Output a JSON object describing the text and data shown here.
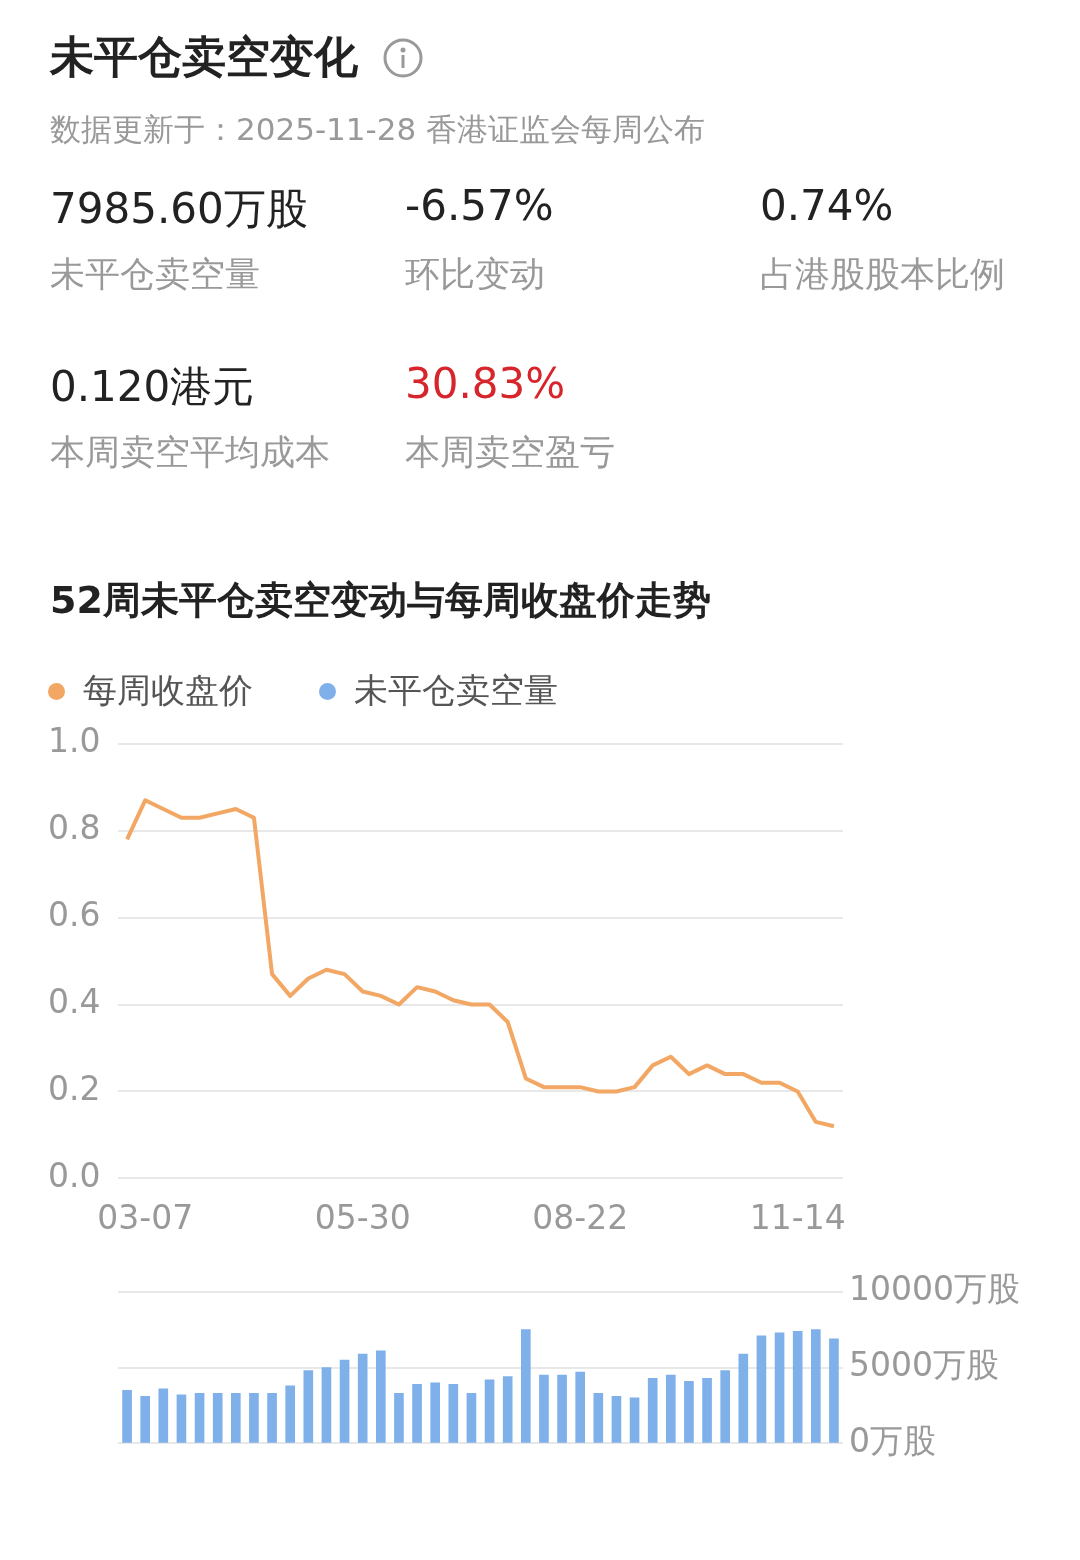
{
  "chart_data": [
    {
      "type": "other",
      "title": "未平仓卖空变化",
      "subtitle": "数据更新于：2025-11-28 香港证监会每周公布",
      "annotations": [
        "7985.60万股",
        "未平仓卖空量",
        "-6.57%",
        "环比变动",
        "0.74%",
        "占港股股本比例",
        "0.120港元",
        "本周卖空平均成本",
        "30.83%",
        "本周卖空盈亏"
      ]
    },
    {
      "type": "line",
      "title": "52周未平仓卖空变动与每周收盘价走势",
      "categories": [
        null,
        "03-07",
        null,
        null,
        null,
        null,
        null,
        null,
        null,
        null,
        null,
        null,
        null,
        "05-30",
        null,
        null,
        null,
        null,
        null,
        null,
        null,
        null,
        null,
        null,
        null,
        "08-22",
        null,
        null,
        null,
        null,
        null,
        null,
        null,
        null,
        null,
        null,
        null,
        "11-14",
        null,
        null
      ],
      "series": [
        {
          "name": "每周收盘价",
          "color": "#f2a764",
          "values": [
            0.78,
            0.87,
            0.85,
            0.83,
            0.83,
            0.84,
            0.85,
            0.83,
            0.47,
            0.42,
            0.46,
            0.48,
            0.47,
            0.43,
            0.42,
            0.4,
            0.44,
            0.43,
            0.41,
            0.4,
            0.4,
            0.36,
            0.23,
            0.21,
            0.21,
            0.21,
            0.2,
            0.2,
            0.21,
            0.26,
            0.28,
            0.24,
            0.26,
            0.24,
            0.24,
            0.22,
            0.22,
            0.2,
            0.13,
            0.12
          ]
        }
      ],
      "ylim": [
        0,
        1
      ],
      "yticks": [
        {
          "value": 0,
          "label": "0.0"
        },
        0.2,
        0.4,
        0.6,
        0.8,
        {
          "value": 1,
          "label": "1.0"
        }
      ],
      "grid": "y",
      "legend": "top left",
      "marker": "none"
    },
    {
      "type": "bar",
      "categories": [
        null,
        null,
        null,
        null,
        null,
        null,
        null,
        null,
        null,
        null,
        null,
        null,
        null,
        null,
        null,
        null,
        null,
        null,
        null,
        null,
        null,
        null,
        null,
        null,
        null,
        null,
        null,
        null,
        null,
        null,
        null,
        null,
        null,
        null,
        null,
        null,
        null,
        null,
        null,
        null
      ],
      "series": [
        {
          "name": "未平仓卖空量",
          "color": "#7fb0ea",
          "values": [
            3500,
            3100,
            3600,
            3200,
            3300,
            3300,
            3300,
            3300,
            3300,
            3800,
            4800,
            5000,
            5500,
            5900,
            6100,
            3300,
            3900,
            4000,
            3900,
            3300,
            4200,
            4400,
            7500,
            4500,
            4500,
            4700,
            3300,
            3100,
            3000,
            4300,
            4500,
            4100,
            4300,
            4800,
            5900,
            7100,
            7300,
            7400,
            7500,
            6900
          ]
        }
      ],
      "ylim": [
        0,
        10000
      ],
      "yticks": [
        {
          "value": 0,
          "label": "0万股"
        },
        {
          "value": 5000,
          "label": "5000万股"
        },
        {
          "value": 10000,
          "label": "10000万股"
        }
      ],
      "grid": "y",
      "legend": "top left"
    }
  ]
}
